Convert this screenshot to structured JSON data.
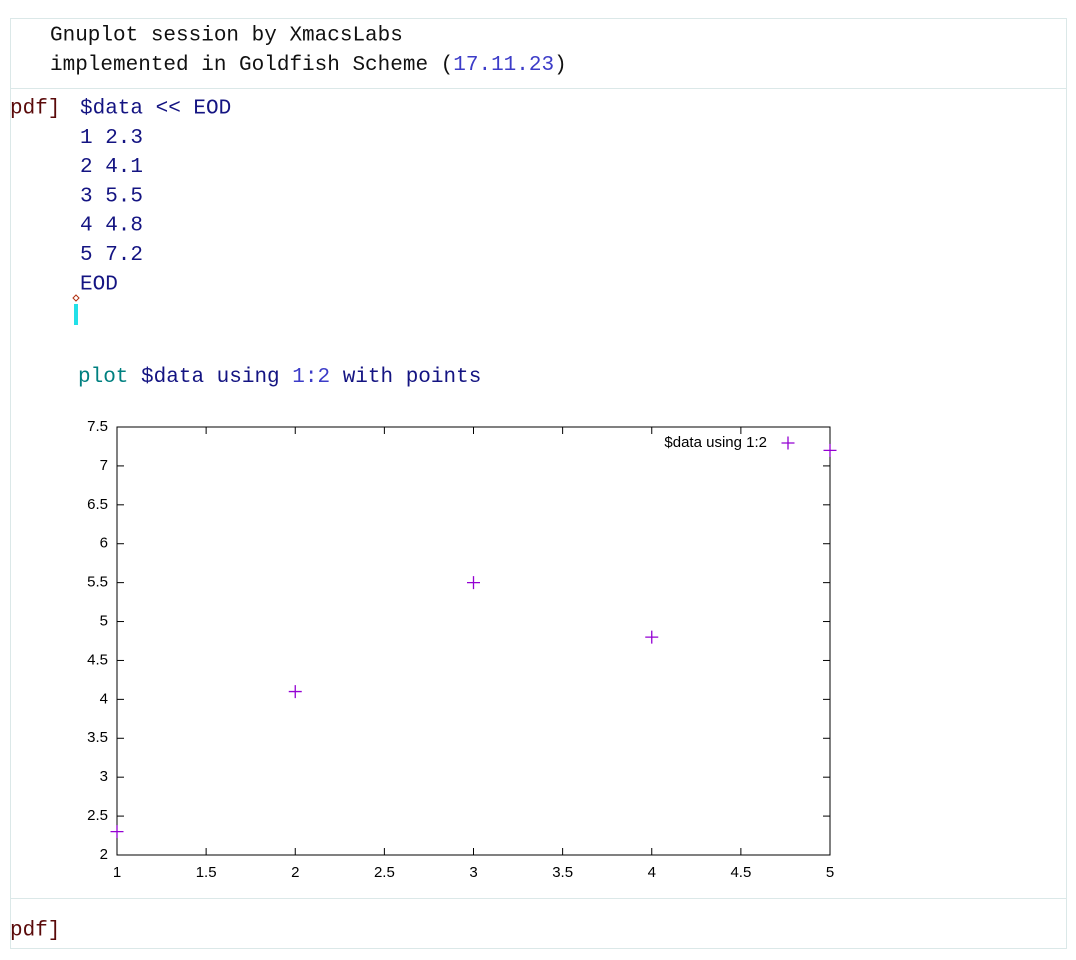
{
  "header": {
    "line1": "Gnuplot session by XmacsLabs",
    "line2_prefix": "implemented in Goldfish Scheme (",
    "version": "17.11.23",
    "line2_suffix": ")"
  },
  "session": {
    "prompt": "pdf]",
    "input_lines": [
      "$data << EOD",
      "1 2.3",
      "2 4.1",
      "3 5.5",
      "4 4.8",
      "5 7.2",
      "EOD"
    ],
    "plot_command": {
      "keyword": "plot",
      "source": "$data using",
      "columns": "1:2",
      "style": "with points"
    },
    "next_prompt": "pdf]"
  },
  "chart_data": {
    "type": "scatter",
    "x": [
      1,
      2,
      3,
      4,
      5
    ],
    "series": [
      {
        "name": "$data using 1:2",
        "color": "#9400d3",
        "values": [
          2.3,
          4.1,
          5.5,
          4.8,
          7.2
        ]
      }
    ],
    "xlim": [
      1,
      5
    ],
    "xticks": [
      1,
      1.5,
      2,
      2.5,
      3,
      3.5,
      4,
      4.5,
      5
    ],
    "ylim": [
      2,
      7.5
    ],
    "yticks": [
      2,
      2.5,
      3,
      3.5,
      4,
      4.5,
      5,
      5.5,
      6,
      6.5,
      7,
      7.5
    ],
    "legend": "top-right"
  }
}
